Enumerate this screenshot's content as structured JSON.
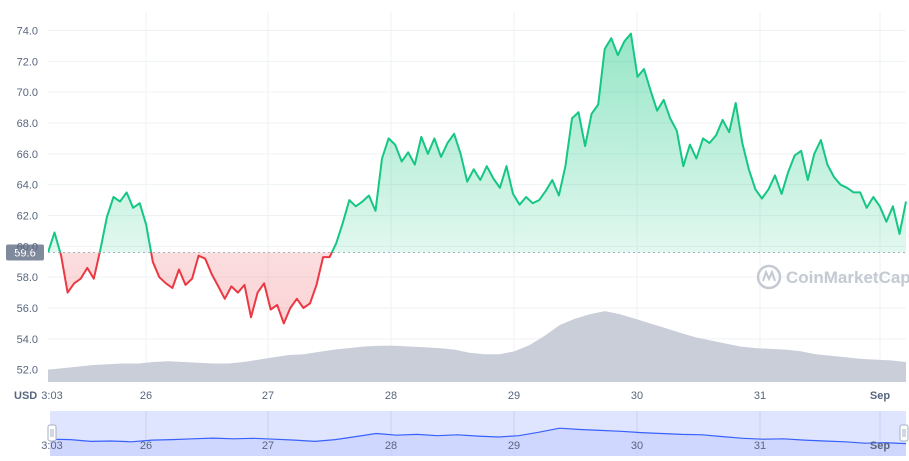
{
  "chart_data": {
    "type": "area",
    "currency_label": "USD",
    "reference_value": 59.6,
    "reference_label": "59.6",
    "y_ticks": [
      {
        "value": 52.0,
        "label": "52.0"
      },
      {
        "value": 54.0,
        "label": "54.0"
      },
      {
        "value": 56.0,
        "label": "56.0"
      },
      {
        "value": 58.0,
        "label": "58.0"
      },
      {
        "value": 60.0,
        "label": "60.0"
      },
      {
        "value": 62.0,
        "label": "62.0"
      },
      {
        "value": 64.0,
        "label": "64.0"
      },
      {
        "value": 66.0,
        "label": "66.0"
      },
      {
        "value": 68.0,
        "label": "68.0"
      },
      {
        "value": 70.0,
        "label": "70.0"
      },
      {
        "value": 72.0,
        "label": "72.0"
      },
      {
        "value": 74.0,
        "label": "74.0"
      }
    ],
    "ylim": [
      51.2,
      75.2
    ],
    "x_ticks": [
      {
        "label": "3:03",
        "at": "Aug 25 03:03"
      },
      {
        "label": "26",
        "at": "Aug 26 00:00"
      },
      {
        "label": "27",
        "at": "Aug 27 00:00"
      },
      {
        "label": "28",
        "at": "Aug 28 00:00"
      },
      {
        "label": "29",
        "at": "Aug 29 00:00"
      },
      {
        "label": "30",
        "at": "Aug 30 00:00"
      },
      {
        "label": "31",
        "at": "Aug 31 00:00"
      },
      {
        "label": "Sep",
        "at": "Sep 1 00:00",
        "bold": true
      }
    ],
    "x_range": [
      "Aug 25 03:03",
      "Sep 1 03:03"
    ],
    "series": [
      {
        "values": [
          59.6,
          60.9,
          59.4,
          57.0,
          57.6,
          57.9,
          58.6,
          57.9,
          59.8,
          61.9,
          63.2,
          62.9,
          63.5,
          62.5,
          62.8,
          61.4,
          59.0,
          58.0,
          57.6,
          57.3,
          58.5,
          57.5,
          57.9,
          59.4,
          59.2,
          58.2,
          57.4,
          56.6,
          57.4,
          57.0,
          57.5,
          55.4,
          57.0,
          57.6,
          55.9,
          56.2,
          55.0,
          56.0,
          56.6,
          56.0,
          56.3,
          57.5,
          59.3,
          59.3,
          60.2,
          61.5,
          63.0,
          62.6,
          62.9,
          63.3,
          62.3,
          65.7,
          67.0,
          66.6,
          65.5,
          66.1,
          65.3,
          67.1,
          66.0,
          67.0,
          65.8,
          66.7,
          67.3,
          66.0,
          64.2,
          65.0,
          64.3,
          65.2,
          64.4,
          63.8,
          65.2,
          63.4,
          62.7,
          63.2,
          62.8,
          63.0,
          63.6,
          64.3,
          63.3,
          65.2,
          68.3,
          68.7,
          66.5,
          68.6,
          69.2,
          72.8,
          73.5,
          72.4,
          73.3,
          73.8,
          71.0,
          71.5,
          70.1,
          68.8,
          69.5,
          68.3,
          67.5,
          65.2,
          66.6,
          65.7,
          67.0,
          66.7,
          67.2,
          68.2,
          67.4,
          69.3,
          66.7,
          65.0,
          63.7,
          63.1,
          63.7,
          64.6,
          63.4,
          64.8,
          65.9,
          66.2,
          64.3,
          66.0,
          66.9,
          65.3,
          64.5,
          64.0,
          63.8,
          63.5,
          63.5,
          62.5,
          63.2,
          62.6,
          61.6,
          62.6,
          60.8,
          62.9
        ]
      }
    ],
    "volume": {
      "values": [
        52.0,
        52.1,
        52.2,
        52.3,
        52.35,
        52.4,
        52.4,
        52.5,
        52.55,
        52.5,
        52.45,
        52.4,
        52.4,
        52.5,
        52.65,
        52.8,
        52.95,
        53.0,
        53.15,
        53.3,
        53.4,
        53.5,
        53.55,
        53.55,
        53.5,
        53.45,
        53.4,
        53.3,
        53.1,
        53.0,
        53.0,
        53.2,
        53.6,
        54.2,
        54.9,
        55.3,
        55.6,
        55.8,
        55.6,
        55.3,
        55.0,
        54.7,
        54.4,
        54.1,
        53.9,
        53.7,
        53.5,
        53.4,
        53.35,
        53.3,
        53.2,
        53.0,
        52.9,
        52.8,
        52.7,
        52.65,
        52.6,
        52.5
      ]
    }
  },
  "navigator": {
    "x_ticks": [
      {
        "label": "3:03"
      },
      {
        "label": "26"
      },
      {
        "label": "27"
      },
      {
        "label": "28"
      },
      {
        "label": "29"
      },
      {
        "label": "30"
      },
      {
        "label": "31"
      },
      {
        "label": "Sep",
        "bold": true
      }
    ],
    "values": [
      0.4,
      0.38,
      0.3,
      0.32,
      0.28,
      0.36,
      0.38,
      0.42,
      0.45,
      0.42,
      0.44,
      0.4,
      0.36,
      0.3,
      0.38,
      0.52,
      0.66,
      0.58,
      0.62,
      0.56,
      0.6,
      0.54,
      0.5,
      0.56,
      0.72,
      0.9,
      0.84,
      0.8,
      0.76,
      0.7,
      0.66,
      0.62,
      0.6,
      0.52,
      0.44,
      0.4,
      0.42,
      0.36,
      0.32,
      0.28,
      0.22,
      0.24,
      0.2
    ]
  },
  "watermark": {
    "text": "CoinMarketCap"
  },
  "colors": {
    "up_line": "#16c784",
    "down_line": "#ea3943",
    "volume_fill": "#c9ced9",
    "grid": "#eff2f5",
    "axis_text": "#58667e",
    "ref_label_bg": "#808a9d",
    "navigator_fill": "#dfe4ff",
    "navigator_line": "#3861fb",
    "watermark": "#c4c9d2"
  }
}
